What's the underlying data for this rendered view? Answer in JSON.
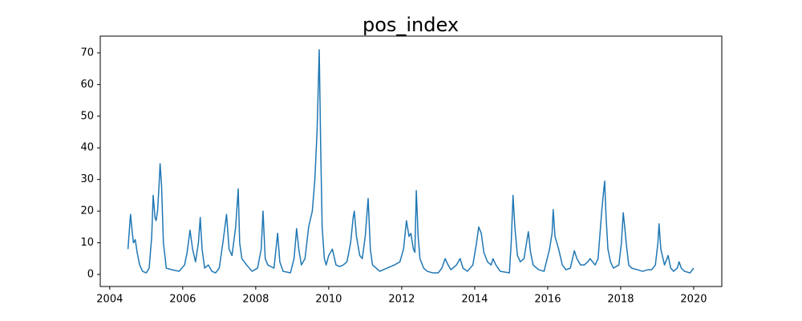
{
  "chart_data": {
    "type": "line",
    "title": "pos_index",
    "color": "#1f77b4",
    "x": [
      2004.5,
      2004.55,
      2004.57,
      2004.62,
      2004.65,
      2004.7,
      2004.75,
      2004.82,
      2004.9,
      2005.0,
      2005.08,
      2005.15,
      2005.19,
      2005.24,
      2005.27,
      2005.31,
      2005.35,
      2005.38,
      2005.42,
      2005.47,
      2005.55,
      2005.7,
      2005.9,
      2006.05,
      2006.12,
      2006.2,
      2006.27,
      2006.35,
      2006.43,
      2006.48,
      2006.53,
      2006.6,
      2006.7,
      2006.8,
      2006.9,
      2007.0,
      2007.1,
      2007.2,
      2007.27,
      2007.35,
      2007.45,
      2007.52,
      2007.56,
      2007.62,
      2007.75,
      2007.9,
      2008.05,
      2008.15,
      2008.2,
      2008.26,
      2008.33,
      2008.5,
      2008.6,
      2008.66,
      2008.75,
      2008.95,
      2009.05,
      2009.12,
      2009.18,
      2009.25,
      2009.35,
      2009.45,
      2009.55,
      2009.62,
      2009.68,
      2009.74,
      2009.78,
      2009.82,
      2009.88,
      2009.93,
      2010.0,
      2010.1,
      2010.2,
      2010.3,
      2010.4,
      2010.5,
      2010.6,
      2010.67,
      2010.7,
      2010.76,
      2010.85,
      2010.92,
      2011.0,
      2011.08,
      2011.14,
      2011.2,
      2011.3,
      2011.4,
      2011.6,
      2011.8,
      2011.95,
      2012.05,
      2012.13,
      2012.2,
      2012.25,
      2012.32,
      2012.36,
      2012.4,
      2012.45,
      2012.5,
      2012.6,
      2012.7,
      2012.85,
      2013.0,
      2013.1,
      2013.19,
      2013.27,
      2013.35,
      2013.5,
      2013.6,
      2013.68,
      2013.8,
      2013.95,
      2014.05,
      2014.11,
      2014.18,
      2014.25,
      2014.35,
      2014.45,
      2014.5,
      2014.58,
      2014.7,
      2014.95,
      2015.0,
      2015.05,
      2015.1,
      2015.17,
      2015.25,
      2015.35,
      2015.42,
      2015.47,
      2015.53,
      2015.6,
      2015.75,
      2015.9,
      2016.05,
      2016.12,
      2016.15,
      2016.2,
      2016.3,
      2016.4,
      2016.5,
      2016.62,
      2016.73,
      2016.8,
      2016.9,
      2017.0,
      2017.1,
      2017.16,
      2017.23,
      2017.3,
      2017.38,
      2017.48,
      2017.53,
      2017.56,
      2017.6,
      2017.65,
      2017.72,
      2017.8,
      2017.95,
      2018.02,
      2018.07,
      2018.11,
      2018.15,
      2018.22,
      2018.3,
      2018.45,
      2018.6,
      2018.75,
      2018.85,
      2018.95,
      2019.02,
      2019.05,
      2019.1,
      2019.2,
      2019.3,
      2019.37,
      2019.45,
      2019.55,
      2019.6,
      2019.66,
      2019.75,
      2019.9,
      2020.0
    ],
    "values": [
      8,
      16,
      19,
      13,
      10,
      11,
      7,
      3,
      1,
      0.5,
      2,
      12,
      25,
      18,
      17,
      20,
      28,
      35,
      28,
      10,
      2,
      1.5,
      1,
      3,
      7,
      14,
      8,
      4,
      10,
      18,
      8,
      2,
      3,
      1,
      0.5,
      2,
      10,
      19,
      8,
      6,
      15,
      27,
      10,
      5,
      3,
      1,
      2,
      8,
      20,
      5,
      3,
      2,
      13,
      4,
      1,
      0.5,
      5,
      14.5,
      8,
      3,
      5,
      15,
      20,
      30,
      45,
      71,
      40,
      15,
      5,
      3,
      6,
      8,
      3,
      2.5,
      3,
      4,
      10,
      18,
      20,
      12,
      6,
      5,
      12,
      24,
      8,
      3,
      2,
      1,
      2,
      3,
      4,
      8,
      17,
      12,
      13,
      8,
      7,
      26.5,
      12,
      5,
      2,
      1,
      0.5,
      0.5,
      2,
      5,
      3,
      1.5,
      3,
      5,
      2,
      1,
      3,
      10,
      15,
      13,
      7,
      4,
      3,
      5,
      3,
      1,
      0.5,
      10,
      25,
      15,
      6,
      4,
      5,
      10,
      13.5,
      7,
      3,
      1.5,
      1,
      8,
      13,
      20.5,
      12,
      8,
      3,
      1.5,
      2,
      7.5,
      5,
      3,
      3,
      4,
      5,
      4,
      3,
      5,
      20,
      26,
      29.5,
      18,
      8,
      4,
      2,
      3,
      10,
      19.5,
      15,
      10,
      3,
      2,
      1.5,
      1,
      1.5,
      1.5,
      3,
      10,
      16,
      8,
      3,
      6,
      2,
      1,
      2,
      4,
      2,
      1,
      0.5,
      2
    ],
    "xlim": [
      2003.74,
      2020.77
    ],
    "xticks": [
      2004,
      2006,
      2008,
      2010,
      2012,
      2014,
      2016,
      2018,
      2020
    ],
    "ylim": [
      -3.8,
      75.3
    ],
    "yticks": [
      0,
      10,
      20,
      30,
      40,
      50,
      60,
      70
    ]
  }
}
